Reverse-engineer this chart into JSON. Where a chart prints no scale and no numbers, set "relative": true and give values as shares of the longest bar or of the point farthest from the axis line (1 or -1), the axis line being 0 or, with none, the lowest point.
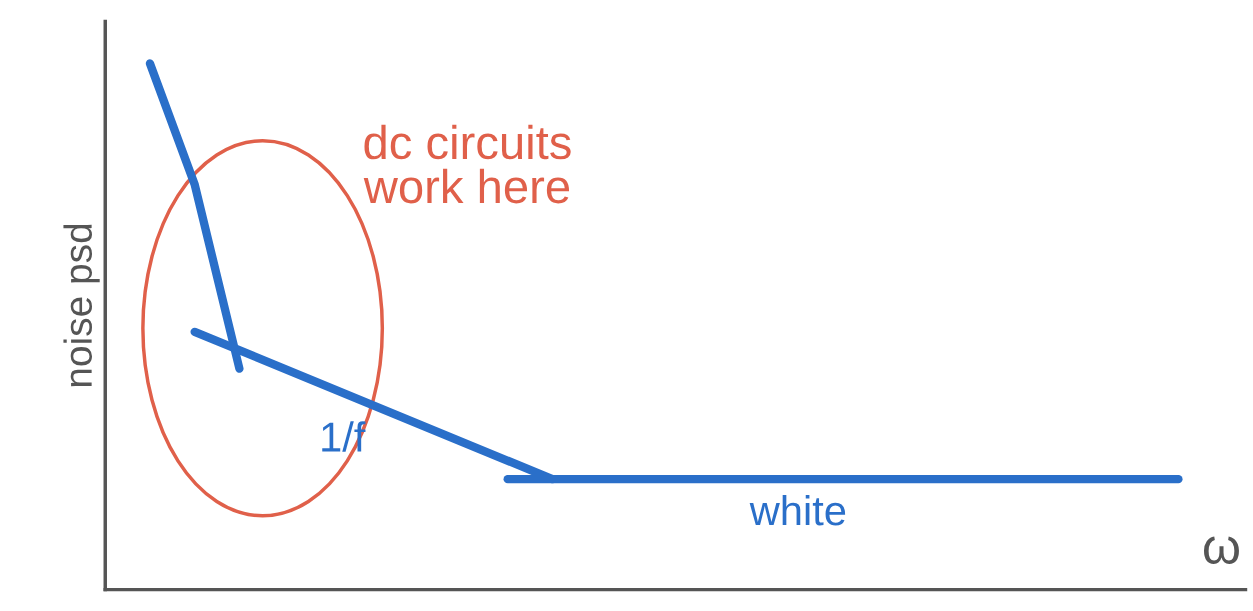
{
  "chart_data": {
    "type": "line",
    "relative": true,
    "xlabel": "ω",
    "ylabel": "noise psd",
    "categories": [
      null,
      null,
      null,
      null,
      null,
      null,
      null,
      null,
      null,
      null,
      null,
      null,
      null,
      null,
      null,
      null,
      null,
      null,
      null,
      null,
      null,
      null,
      null,
      null,
      null,
      null
    ],
    "series": [
      {
        "color": "#2a6fc9",
        "values": [
          null,
          1.0,
          0.77,
          0.42,
          null,
          null,
          null,
          null,
          null,
          null,
          null,
          null,
          null,
          null,
          null,
          null,
          null,
          null,
          null,
          null,
          null,
          null,
          null,
          null,
          null,
          null
        ]
      },
      {
        "name": "1/f",
        "color": "#2a6fc9",
        "values": [
          null,
          null,
          0.49,
          null,
          null,
          null,
          null,
          null,
          null,
          null,
          0.21,
          null,
          null,
          null,
          null,
          null,
          null,
          null,
          null,
          null,
          null,
          null,
          null,
          null,
          null,
          null
        ]
      },
      {
        "name": "white",
        "color": "#2a6fc9",
        "values": [
          null,
          null,
          null,
          null,
          null,
          null,
          null,
          null,
          null,
          0.21,
          null,
          null,
          null,
          null,
          null,
          null,
          null,
          null,
          null,
          null,
          null,
          null,
          null,
          null,
          0.21,
          null
        ]
      }
    ],
    "annotations": [
      "dc circuits\nwork here"
    ],
    "legend": false,
    "marker": "none",
    "line_style": "solid"
  }
}
